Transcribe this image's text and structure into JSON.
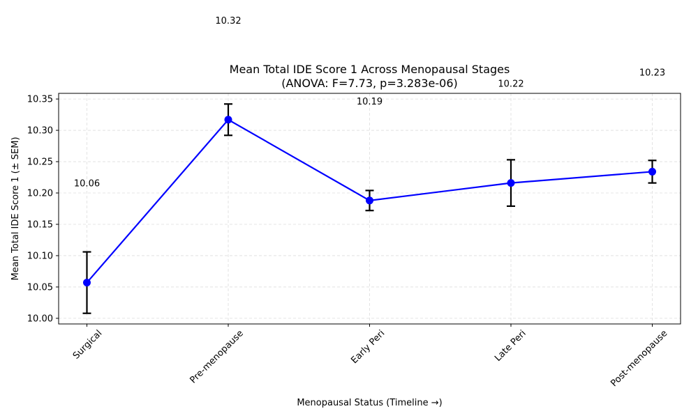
{
  "chart_data": {
    "type": "line",
    "title": "Mean Total IDE Score 1 Across Menopausal Stages",
    "subtitle": "(ANOVA: F=7.73, p=3.283e-06)",
    "xlabel": "Menopausal Status (Timeline →)",
    "ylabel": "Mean Total IDE Score 1 (± SEM)",
    "categories": [
      "Surgical",
      "Pre-menopause",
      "Early Peri",
      "Late Peri",
      "Post-menopause"
    ],
    "values": [
      10.057,
      10.317,
      10.188,
      10.216,
      10.234
    ],
    "errors": [
      0.049,
      0.025,
      0.016,
      0.037,
      0.018
    ],
    "data_labels": [
      "10.06",
      "10.32",
      "10.19",
      "10.22",
      "10.23"
    ],
    "ylim": [
      9.991,
      10.359
    ],
    "yticks": [
      10.0,
      10.05,
      10.1,
      10.15,
      10.2,
      10.25,
      10.3,
      10.35
    ],
    "ytick_labels": [
      "10.00",
      "10.05",
      "10.10",
      "10.15",
      "10.20",
      "10.25",
      "10.30",
      "10.35"
    ],
    "grid": true,
    "line_color": "#0000ff",
    "marker_color": "#0000ff",
    "errorbar_color": "#000000",
    "grid_color": "#dddddd"
  }
}
